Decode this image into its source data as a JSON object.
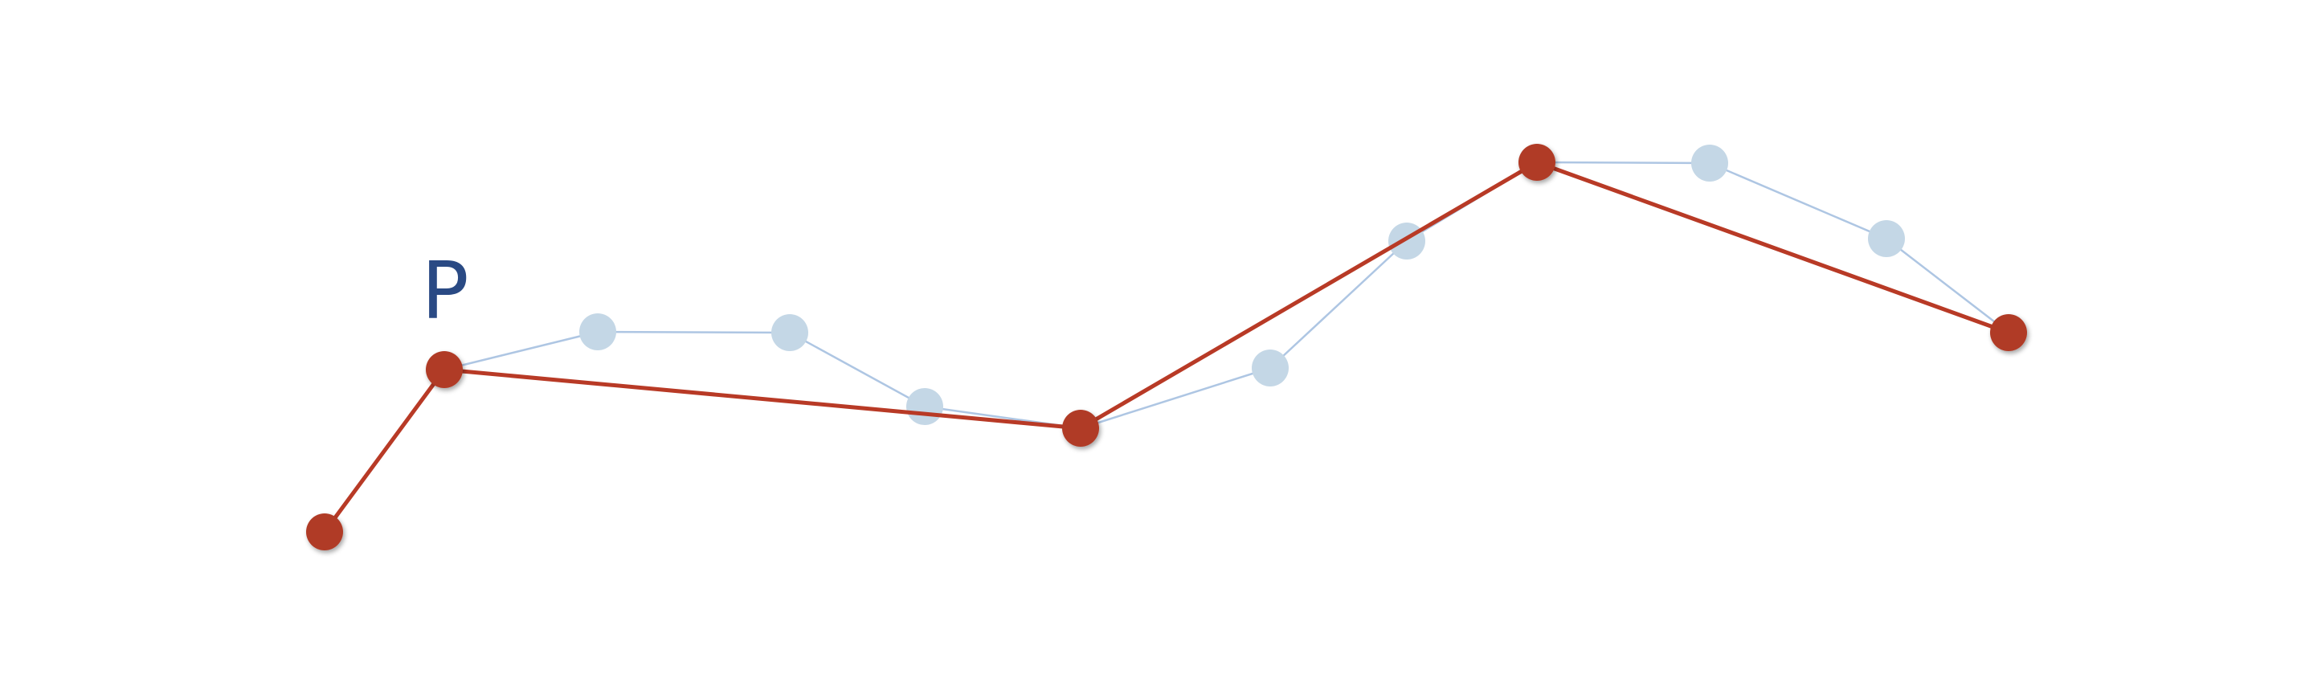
{
  "diagram": {
    "point_label": "P",
    "colors": {
      "background": "#ffffff",
      "original_line": "#aec6e3",
      "original_point": "#c4d7e6",
      "simplified_line": "#b83a26",
      "simplified_point": "#b03a25",
      "label": "#2a4a84"
    },
    "original_polyline": {
      "points": [
        "p0",
        "p1",
        "o1",
        "o2",
        "o3",
        "p2",
        "o4",
        "o5",
        "p3",
        "o6",
        "o7",
        "p4"
      ]
    },
    "simplified_polyline": {
      "points": [
        "p0",
        "p1",
        "p2",
        "p3",
        "p4"
      ]
    }
  }
}
